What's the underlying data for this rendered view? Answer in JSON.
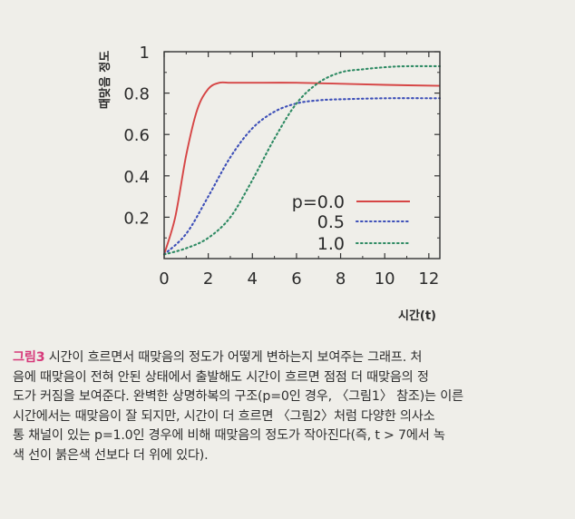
{
  "figure": {
    "ylabel": "때맞음 정도",
    "xlabel": "시간(t)"
  },
  "chart_data": {
    "type": "line",
    "title": "",
    "xlabel": "시간(t)",
    "ylabel": "때맞음 정도",
    "xlim": [
      0,
      12.5
    ],
    "ylim": [
      0,
      1.0
    ],
    "xticks": [
      0,
      2,
      4,
      6,
      8,
      10,
      12
    ],
    "yticks": [
      0.2,
      0.4,
      0.6,
      0.8,
      1
    ],
    "xtick_labels": [
      "0",
      "2",
      "4",
      "6",
      "8",
      "10",
      "12"
    ],
    "ytick_labels": [
      "0.2",
      "0.4",
      "0.6",
      "0.8",
      "1"
    ],
    "grid": false,
    "legend_position": "lower-right",
    "series": [
      {
        "name": "p=0.0",
        "color": "#d64545",
        "style": "solid",
        "x": [
          0,
          0.5,
          1,
          1.5,
          2,
          2.5,
          3,
          4,
          6,
          8,
          10,
          12.5
        ],
        "y": [
          0.02,
          0.2,
          0.5,
          0.72,
          0.82,
          0.85,
          0.85,
          0.85,
          0.85,
          0.845,
          0.84,
          0.835
        ]
      },
      {
        "name": "0.5",
        "color": "#3d4fb8",
        "style": "dotted",
        "x": [
          0,
          1,
          2,
          3,
          4,
          5,
          6,
          7,
          8,
          10,
          12.5
        ],
        "y": [
          0.02,
          0.12,
          0.3,
          0.49,
          0.63,
          0.71,
          0.75,
          0.765,
          0.77,
          0.775,
          0.775
        ]
      },
      {
        "name": "1.0",
        "color": "#2e8a63",
        "style": "dotted",
        "x": [
          0,
          1,
          2,
          3,
          4,
          5,
          6,
          7,
          8,
          9,
          10,
          11,
          12.5
        ],
        "y": [
          0.02,
          0.05,
          0.1,
          0.2,
          0.38,
          0.58,
          0.75,
          0.85,
          0.9,
          0.915,
          0.925,
          0.93,
          0.93
        ]
      }
    ]
  },
  "caption": {
    "label": "그림3",
    "line1": " 시간이 흐르면서 때맞음의 정도가 어떻게 변하는지 보여주는 그래프. 처",
    "line2": "음에 때맞음이 전혀 안된 상태에서 출발해도 시간이 흐르면 점점 더 때맞음의 정",
    "line3": "도가 커짐을 보여준다. 완벽한 상명하복의 구조(p=0인 경우, 〈그림1〉 참조)는 이른",
    "line4": "시간에서는 때맞음이 잘 되지만, 시간이 더 흐르면 〈그림2〉처럼 다양한 의사소",
    "line5": "통 채널이 있는 p=1.0인 경우에 비해 때맞음의 정도가 작아진다(즉, t > 7에서 녹",
    "line6": "색 선이 붉은색 선보다 더 위에 있다)."
  }
}
